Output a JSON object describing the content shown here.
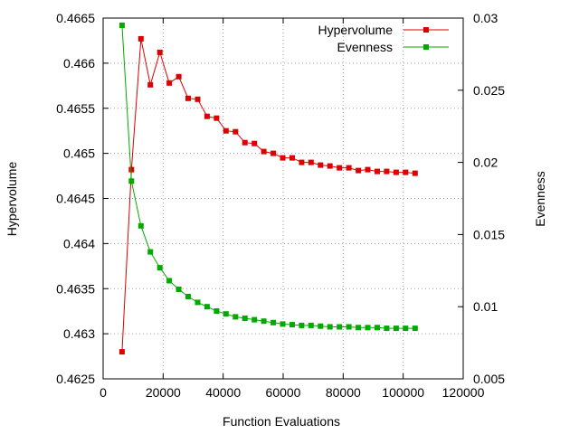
{
  "chart_data": {
    "type": "line",
    "xlabel": "Function Evaluations",
    "ylabel": "Hypervolume",
    "y2label": "Evenness",
    "xlim": [
      0,
      120000
    ],
    "ylim": [
      0.4625,
      0.4665
    ],
    "y2lim": [
      0.005,
      0.03
    ],
    "grid": true,
    "legend_position": "top-right",
    "x_ticks": [
      {
        "value": 0,
        "label": "0"
      },
      {
        "value": 20000,
        "label": "20000"
      },
      {
        "value": 40000,
        "label": "40000"
      },
      {
        "value": 60000,
        "label": "60000"
      },
      {
        "value": 80000,
        "label": "80000"
      },
      {
        "value": 100000,
        "label": "100000"
      },
      {
        "value": 120000,
        "label": "120000"
      }
    ],
    "y_ticks": [
      {
        "value": 0.4625,
        "label": "0.4625"
      },
      {
        "value": 0.463,
        "label": "0.463"
      },
      {
        "value": 0.4635,
        "label": "0.4635"
      },
      {
        "value": 0.464,
        "label": "0.464"
      },
      {
        "value": 0.4645,
        "label": "0.4645"
      },
      {
        "value": 0.465,
        "label": "0.465"
      },
      {
        "value": 0.4655,
        "label": "0.4655"
      },
      {
        "value": 0.466,
        "label": "0.466"
      },
      {
        "value": 0.4665,
        "label": "0.4665"
      }
    ],
    "y2_ticks": [
      {
        "value": 0.005,
        "label": "0.005"
      },
      {
        "value": 0.01,
        "label": "0.01"
      },
      {
        "value": 0.015,
        "label": "0.015"
      },
      {
        "value": 0.02,
        "label": "0.02"
      },
      {
        "value": 0.025,
        "label": "0.025"
      },
      {
        "value": 0.03,
        "label": "0.03"
      }
    ],
    "x": [
      6300,
      9450,
      12600,
      15750,
      18900,
      22050,
      25200,
      28350,
      31500,
      34650,
      37800,
      40950,
      44100,
      47250,
      50400,
      53550,
      56700,
      59850,
      63000,
      66150,
      69300,
      72450,
      75600,
      78750,
      81900,
      85050,
      88200,
      91350,
      94500,
      97650,
      100800,
      103950
    ],
    "series": [
      {
        "name": "Hypervolume",
        "axis": "left",
        "color": "#dd0000",
        "values": [
          0.4628,
          0.46482,
          0.46627,
          0.46576,
          0.46612,
          0.46578,
          0.46585,
          0.46561,
          0.4656,
          0.46541,
          0.46539,
          0.46525,
          0.46524,
          0.46512,
          0.46511,
          0.46502,
          0.465,
          0.46495,
          0.46495,
          0.4649,
          0.4649,
          0.46487,
          0.46486,
          0.46484,
          0.46484,
          0.46481,
          0.46482,
          0.4648,
          0.4648,
          0.46479,
          0.46479,
          0.46478
        ]
      },
      {
        "name": "Evenness",
        "axis": "right",
        "color": "#00aa00",
        "values": [
          0.0295,
          0.0187,
          0.0156,
          0.0138,
          0.0127,
          0.0118,
          0.0112,
          0.0107,
          0.0103,
          0.01,
          0.0097,
          0.0095,
          0.0093,
          0.0092,
          0.0091,
          0.009,
          0.0089,
          0.0088,
          0.00875,
          0.0087,
          0.0087,
          0.00865,
          0.0086,
          0.0086,
          0.0086,
          0.00855,
          0.00855,
          0.00855,
          0.0085,
          0.0085,
          0.0085,
          0.0085
        ]
      }
    ]
  }
}
